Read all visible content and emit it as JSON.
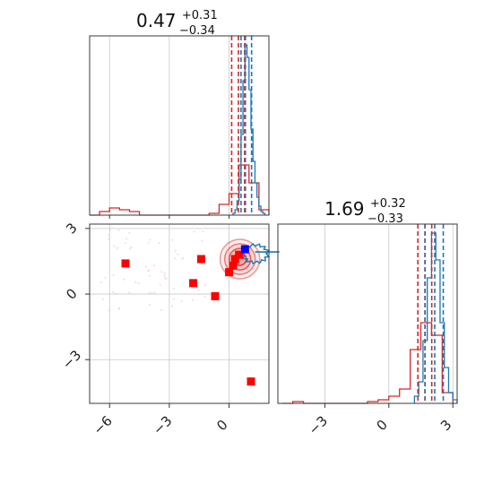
{
  "chart_data": {
    "type": "corner",
    "colors": {
      "posterior_a": "#d62728",
      "posterior_b": "#1f77b4",
      "marker_red": "#ff0000",
      "marker_blue": "#0000ff",
      "scatter": "#e6a0c4"
    },
    "grid": true,
    "panels": [
      {
        "id": "marginal_param1",
        "kind": "histogram",
        "title_value": "0.47",
        "title_plus": "+0.31",
        "title_minus": "−0.34",
        "xlim": [
          -7,
          2
        ],
        "series": [
          {
            "name": "",
            "color": "#d62728",
            "bins": [
              -7,
              -6.5,
              -6,
              -5.5,
              -5,
              -4.5,
              -4,
              -3.5,
              -3,
              -2.5,
              -2,
              -1.5,
              -1,
              -0.5,
              0,
              0.5,
              1,
              1.5,
              2
            ],
            "counts": [
              0,
              2,
              4,
              3,
              2,
              0,
              0,
              0,
              0,
              0,
              0,
              0,
              1,
              6,
              12,
              28,
              18,
              3
            ],
            "quantiles": [
              0.13,
              0.47,
              0.78
            ]
          },
          {
            "name": "",
            "color": "#1f77b4",
            "bins": [
              0.2,
              0.3,
              0.4,
              0.5,
              0.6,
              0.7,
              0.8,
              0.9,
              1.0,
              1.1,
              1.2,
              1.3,
              1.4,
              1.5,
              1.6,
              1.7,
              1.8
            ],
            "counts": [
              1,
              3,
              8,
              20,
              45,
              75,
              95,
              88,
              70,
              48,
              30,
              18,
              10,
              5,
              2,
              1
            ],
            "quantiles": [
              0.6,
              0.82,
              1.13
            ]
          }
        ]
      },
      {
        "id": "joint_param1_param2",
        "kind": "scatter",
        "xlim": [
          -7,
          2
        ],
        "ylim": [
          -5,
          3.2
        ],
        "xticks": [
          -6,
          -3,
          0
        ],
        "yticks": [
          3,
          0,
          -3
        ],
        "xtick_labels": [
          "−6",
          "−3",
          "0"
        ],
        "ytick_labels": [
          "3",
          "0",
          "−3"
        ],
        "red_markers": [
          {
            "x": -5.2,
            "y": 1.4
          },
          {
            "x": -1.4,
            "y": 1.6
          },
          {
            "x": -1.8,
            "y": 0.5
          },
          {
            "x": -0.7,
            "y": -0.1
          },
          {
            "x": 1.1,
            "y": -4.0
          },
          {
            "x": 0.0,
            "y": 1.0
          },
          {
            "x": 0.3,
            "y": 1.6
          },
          {
            "x": 0.2,
            "y": 1.3
          },
          {
            "x": 0.5,
            "y": 1.8
          }
        ],
        "blue_marker": {
          "x": 0.8,
          "y": 2.05
        },
        "contour_center": {
          "x": 0.5,
          "y": 1.6
        }
      },
      {
        "id": "marginal_param2",
        "kind": "histogram",
        "title_value": "1.69",
        "title_plus": "+0.32",
        "title_minus": "−0.33",
        "xlim": [
          -5.2,
          3.2
        ],
        "xticks": [
          -3,
          0,
          3
        ],
        "xtick_labels": [
          "−3",
          "0",
          "3"
        ],
        "series": [
          {
            "name": "",
            "color": "#d62728",
            "bins": [
              -5,
              -4.5,
              -4,
              -3.5,
              -3,
              -2.5,
              -2,
              -1.5,
              -1,
              -0.5,
              0,
              0.5,
              1,
              1.5,
              2,
              2.5,
              3
            ],
            "counts": [
              0,
              1,
              0,
              0,
              0,
              0,
              0,
              0,
              1,
              2,
              4,
              8,
              30,
              45,
              38,
              6
            ],
            "quantiles": [
              1.36,
              1.69,
              2.01
            ]
          },
          {
            "name": "",
            "color": "#1f77b4",
            "bins": [
              1.2,
              1.4,
              1.6,
              1.8,
              2.0,
              2.2,
              2.4,
              2.6,
              2.8,
              3.0,
              3.2
            ],
            "counts": [
              4,
              12,
              35,
              70,
              95,
              80,
              45,
              20,
              6,
              2
            ],
            "quantiles": [
              1.7,
              2.15,
              2.55
            ]
          }
        ]
      }
    ]
  }
}
